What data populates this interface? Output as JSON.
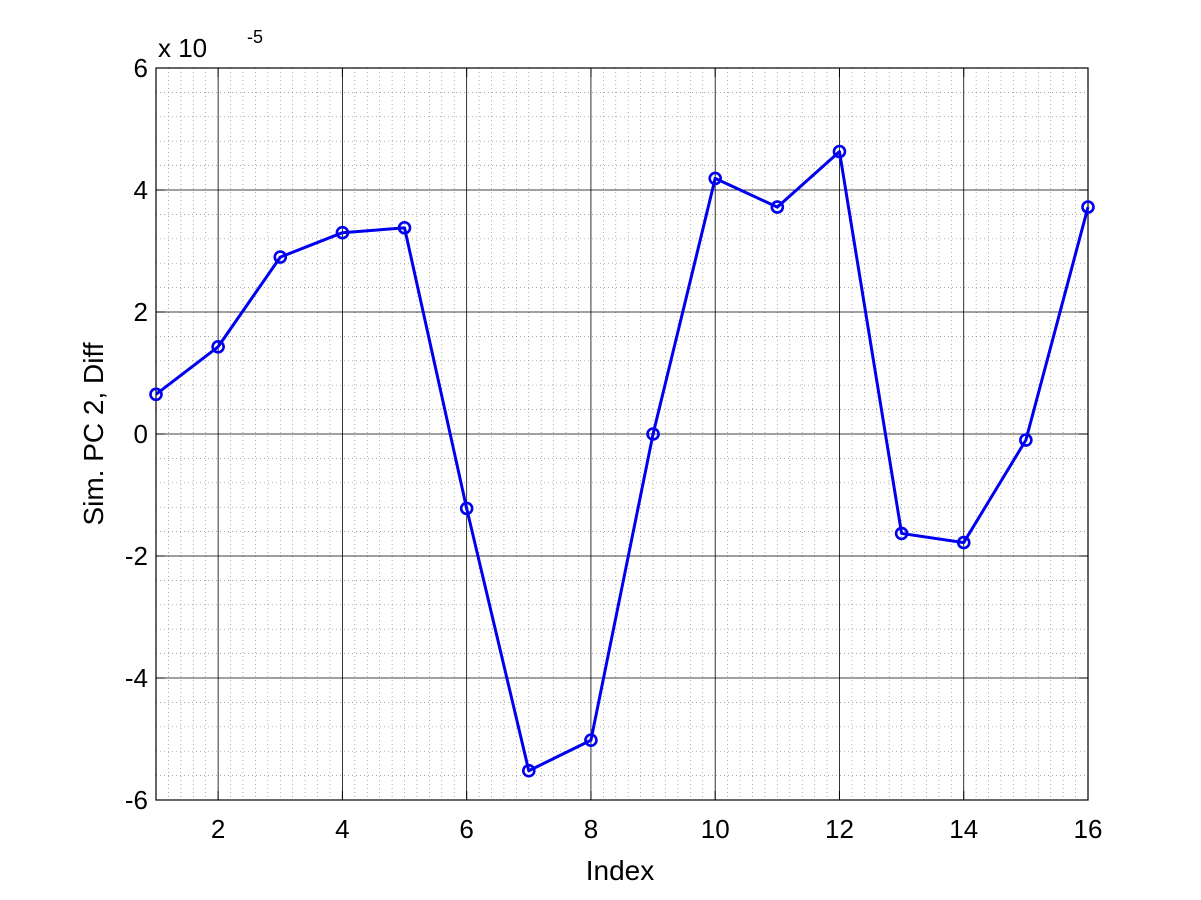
{
  "chart_data": {
    "type": "line",
    "xlabel": "Index",
    "ylabel": "Sim. PC 2, Diff",
    "y_exponent_label": {
      "base": "x 10",
      "exponent": "-5"
    },
    "xlim": [
      1,
      16
    ],
    "ylim": [
      -6,
      6
    ],
    "x_ticks": [
      "2",
      "4",
      "6",
      "8",
      "10",
      "12",
      "14",
      "16"
    ],
    "y_ticks": [
      "-6",
      "-4",
      "-2",
      "0",
      "2",
      "4",
      "6"
    ],
    "grid": true,
    "minor_grid": true,
    "series": [
      {
        "color": "#0000ee",
        "marker": "circle",
        "x": [
          1,
          2,
          3,
          4,
          5,
          6,
          7,
          8,
          9,
          10,
          11,
          12,
          13,
          14,
          15,
          16
        ],
        "y": [
          0.65,
          1.43,
          2.9,
          3.3,
          3.38,
          -1.22,
          -5.52,
          -5.02,
          0.0,
          4.19,
          3.72,
          4.63,
          -1.63,
          -1.78,
          -0.1,
          3.72
        ]
      }
    ]
  }
}
